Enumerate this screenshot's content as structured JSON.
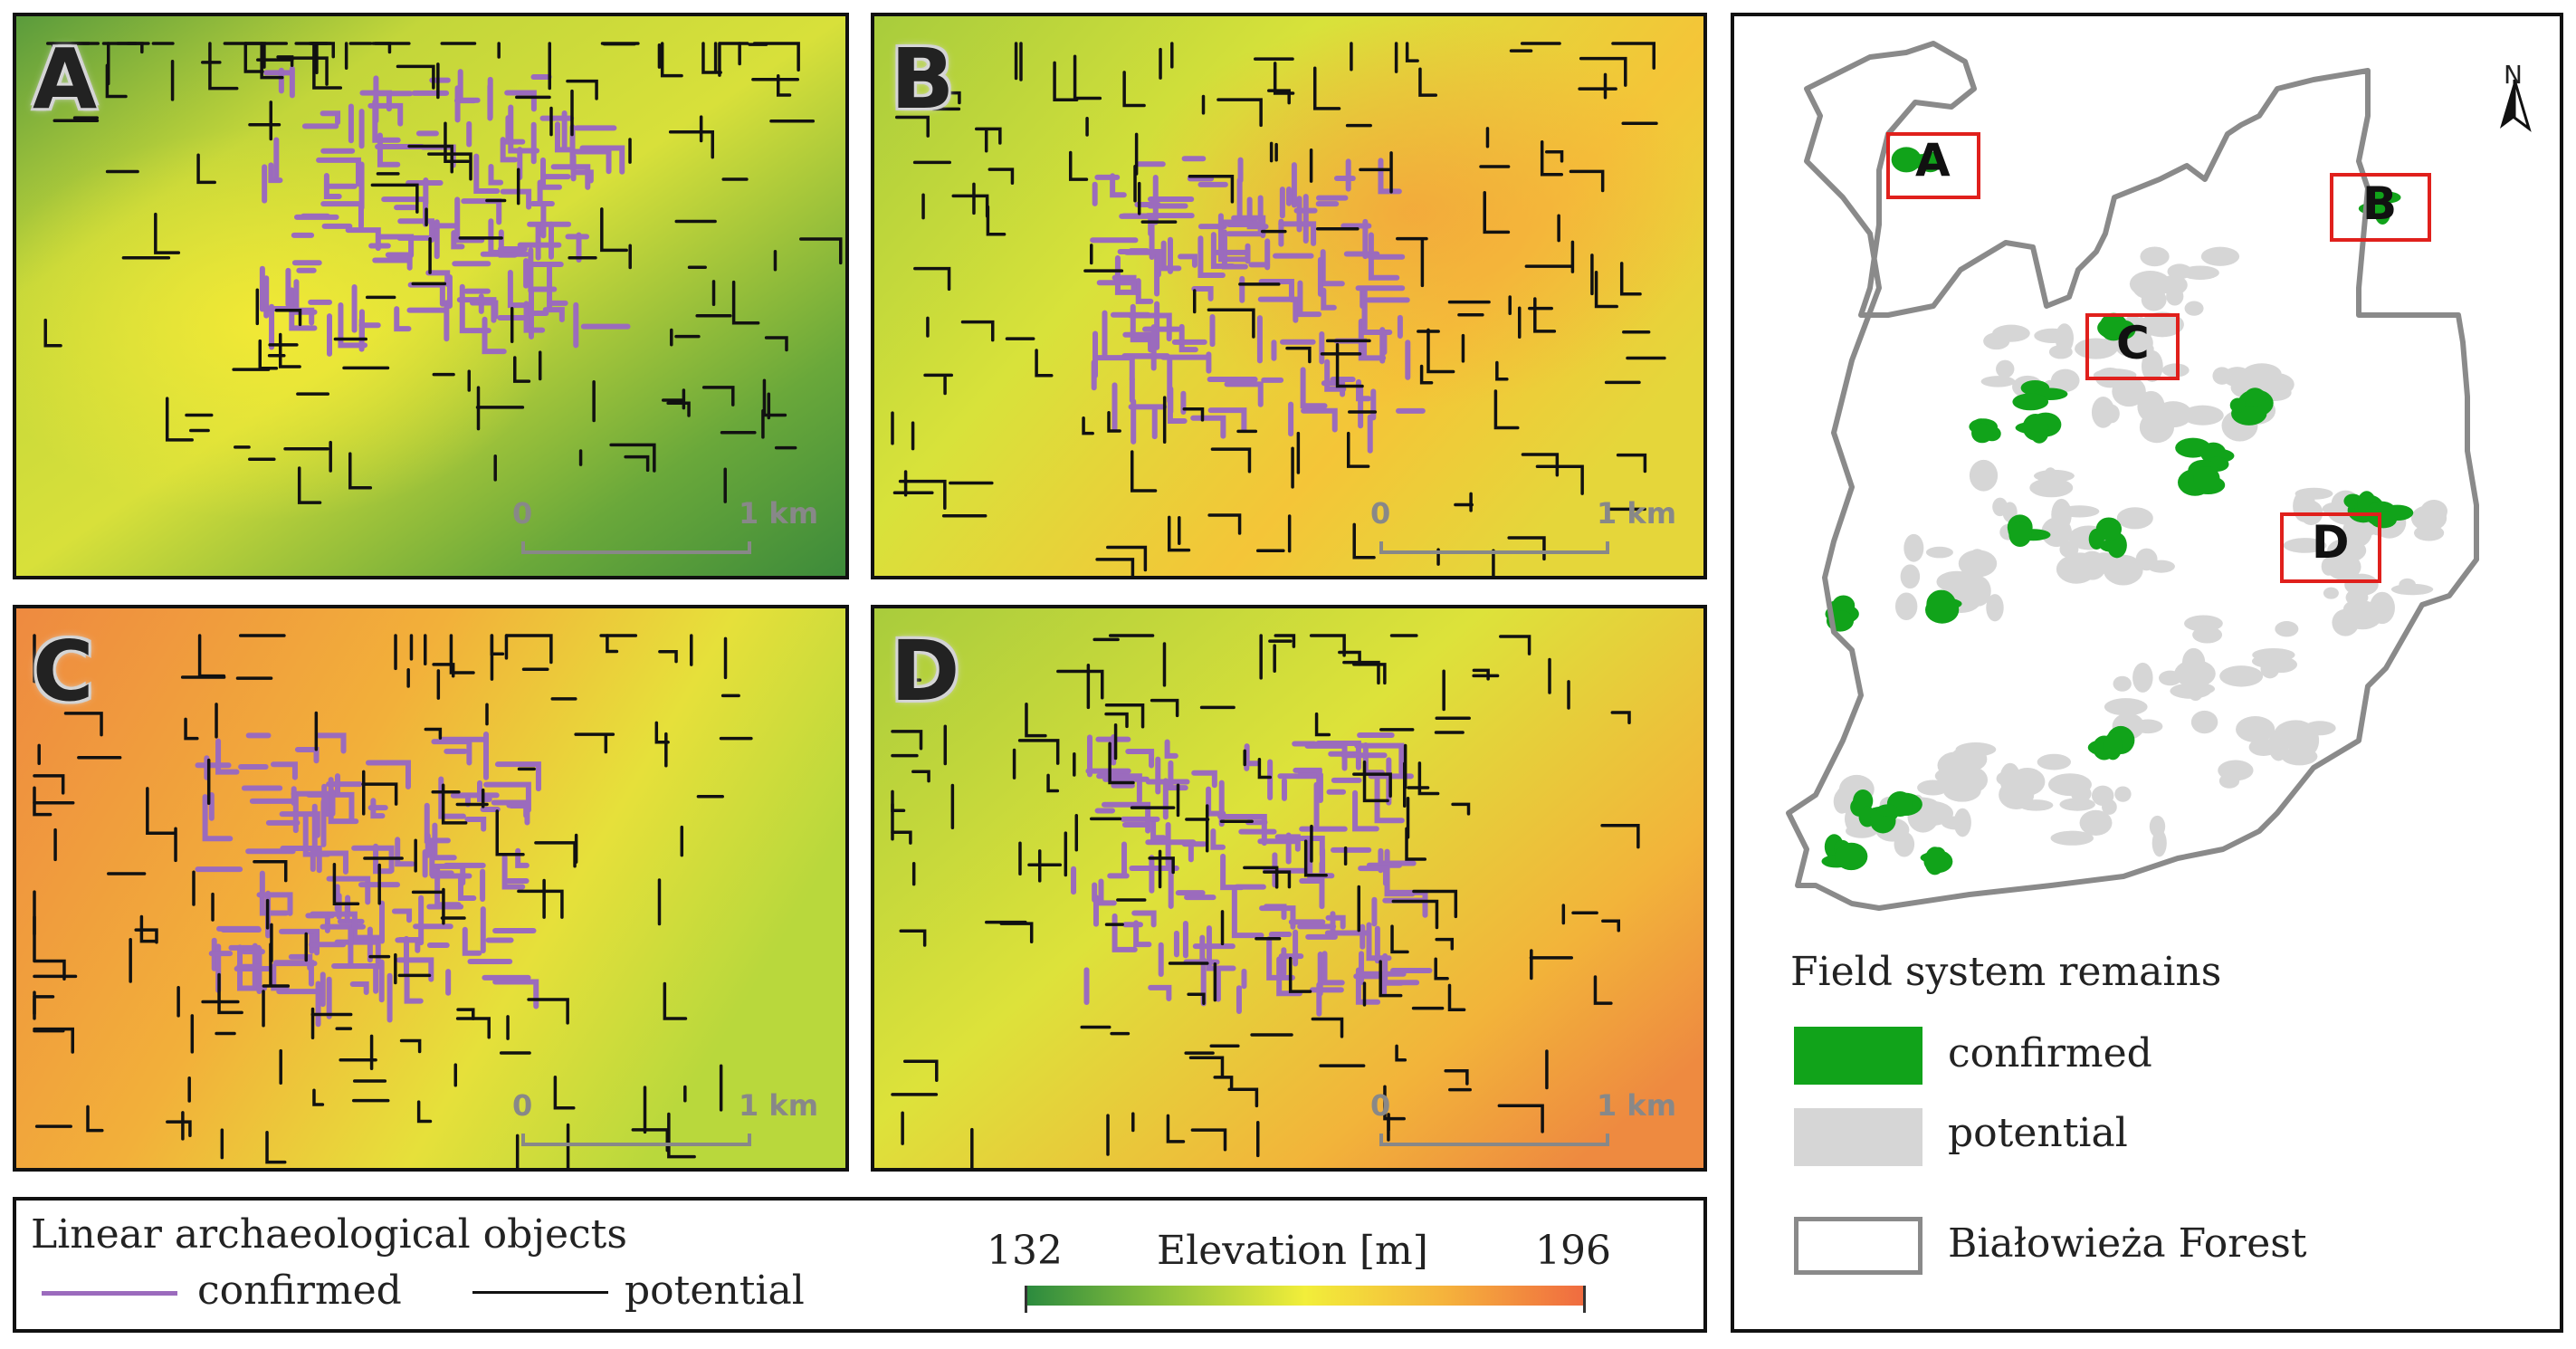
{
  "panels": [
    {
      "id": "A",
      "label": "A",
      "scale_start": "0",
      "scale_end": "1 km"
    },
    {
      "id": "B",
      "label": "B",
      "scale_start": "0",
      "scale_end": "1 km"
    },
    {
      "id": "C",
      "label": "C",
      "scale_start": "0",
      "scale_end": "1 km"
    },
    {
      "id": "D",
      "label": "D",
      "scale_start": "0",
      "scale_end": "1 km"
    }
  ],
  "bottom_legend": {
    "title": "Linear archaeological objects",
    "confirmed": "confirmed",
    "potential": "potential",
    "elevation_title": "Elevation [m]",
    "elevation_min": "132",
    "elevation_max": "196"
  },
  "overview": {
    "north": "N",
    "insets": [
      "A",
      "B",
      "C",
      "D"
    ],
    "legend_title": "Field system remains",
    "confirmed": "confirmed",
    "potential": "potential",
    "forest": "Białowieża Forest"
  },
  "colors": {
    "confirmed_line": "#9b6bbd",
    "potential_line": "#111111",
    "confirmed_area": "#11a31a",
    "potential_area": "#d6d6d6",
    "forest_outline": "#8a8a8a",
    "inset_box": "#e0201c",
    "elev_low": "#2a8a3e",
    "elev_mid": "#f2ee3a",
    "elev_high": "#f06a40"
  }
}
